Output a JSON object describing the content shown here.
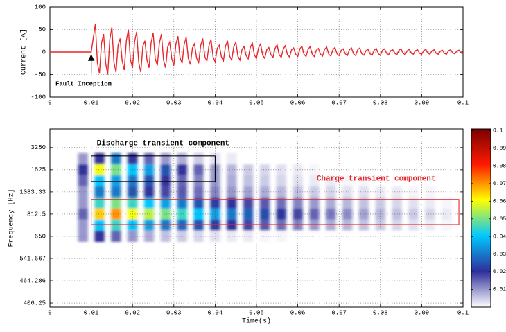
{
  "chart_data": [
    {
      "type": "line",
      "ylabel": "Current [A]",
      "xlim": [
        0,
        0.1
      ],
      "xticks": [
        0,
        0.01,
        0.02,
        0.03,
        0.04,
        0.05,
        0.06,
        0.07,
        0.08,
        0.09,
        0.1
      ],
      "ylim": [
        -100,
        100
      ],
      "yticks": [
        -100,
        -50,
        0,
        50,
        100
      ],
      "grid": true,
      "color": "#e8262a",
      "annotations": [
        {
          "text": "Fault Inception",
          "x": 0.01
        }
      ],
      "x": [
        0,
        0.01,
        0.0105,
        0.011,
        0.0115,
        0.012,
        0.0125,
        0.013,
        0.0135,
        0.014,
        0.0145,
        0.015,
        0.0155,
        0.016,
        0.0165,
        0.017,
        0.0175,
        0.018,
        0.0185,
        0.019,
        0.0195,
        0.02,
        0.0205,
        0.021,
        0.0215,
        0.022,
        0.0225,
        0.023,
        0.0235,
        0.024,
        0.0245,
        0.025,
        0.0255,
        0.026,
        0.0265,
        0.027,
        0.0275,
        0.028,
        0.0285,
        0.029,
        0.0295,
        0.03,
        0.0305,
        0.031,
        0.0315,
        0.032,
        0.0325,
        0.033,
        0.0335,
        0.034,
        0.0345,
        0.035,
        0.0355,
        0.036,
        0.0365,
        0.037,
        0.0375,
        0.038,
        0.0385,
        0.039,
        0.0395,
        0.04,
        0.0405,
        0.041,
        0.0415,
        0.042,
        0.0425,
        0.043,
        0.0435,
        0.044,
        0.0445,
        0.045,
        0.0455,
        0.046,
        0.0465,
        0.047,
        0.0475,
        0.048,
        0.0485,
        0.049,
        0.0495,
        0.05,
        0.0505,
        0.051,
        0.0515,
        0.052,
        0.0525,
        0.053,
        0.0535,
        0.054,
        0.0545,
        0.055,
        0.0555,
        0.056,
        0.0565,
        0.057,
        0.0575,
        0.058,
        0.0585,
        0.059,
        0.0595,
        0.06,
        0.0605,
        0.061,
        0.0615,
        0.062,
        0.0625,
        0.063,
        0.0635,
        0.064,
        0.0645,
        0.065,
        0.0655,
        0.066,
        0.0665,
        0.067,
        0.0675,
        0.068,
        0.0685,
        0.069,
        0.0695,
        0.07,
        0.0705,
        0.071,
        0.0715,
        0.072,
        0.0725,
        0.073,
        0.0735,
        0.074,
        0.0745,
        0.075,
        0.0755,
        0.076,
        0.0765,
        0.077,
        0.0775,
        0.078,
        0.0785,
        0.079,
        0.0795,
        0.08,
        0.0805,
        0.081,
        0.0815,
        0.082,
        0.0825,
        0.083,
        0.0835,
        0.084,
        0.0845,
        0.085,
        0.0855,
        0.086,
        0.0865,
        0.087,
        0.0875,
        0.088,
        0.0885,
        0.089,
        0.0895,
        0.09,
        0.0905,
        0.091,
        0.0915,
        0.092,
        0.0925,
        0.093,
        0.0935,
        0.094,
        0.0945,
        0.095,
        0.0955,
        0.096,
        0.0965,
        0.097,
        0.0975,
        0.098,
        0.0985,
        0.099,
        0.0995,
        0.1
      ],
      "values": [
        0,
        0,
        31,
        62,
        -24,
        -48,
        20,
        40,
        -25,
        -50,
        28,
        55,
        -23,
        -45,
        15,
        30,
        -20,
        -40,
        25,
        50,
        -18,
        -35,
        23,
        45,
        -23,
        -45,
        13,
        25,
        -18,
        -35,
        21,
        42,
        -15,
        -30,
        20,
        40,
        -18,
        -35,
        11,
        22,
        -15,
        -30,
        18,
        35,
        -13,
        -25,
        17,
        33,
        -14,
        -28,
        9,
        18,
        -13,
        -25,
        15,
        30,
        -10,
        -20,
        14,
        28,
        -11,
        -22,
        8,
        15,
        -10,
        -20,
        13,
        25,
        -9,
        -18,
        11,
        22,
        -9,
        -18,
        6,
        12,
        -8,
        -15,
        10,
        20,
        -7,
        -14,
        9,
        18,
        -7,
        -14,
        5,
        10,
        -6,
        -12,
        8,
        16,
        -6,
        -12,
        7,
        14,
        -6,
        -11,
        5,
        9,
        -5,
        -10,
        7,
        13,
        -5,
        -10,
        6,
        12,
        -5,
        -10,
        4,
        8,
        -5,
        -9,
        6,
        11,
        -5,
        -9,
        5,
        10,
        -4,
        -8,
        4,
        7,
        -4,
        -8,
        5,
        9,
        -4,
        -8,
        5,
        9,
        -4,
        -7,
        3,
        6,
        -4,
        -7,
        4,
        8,
        -4,
        -7,
        4,
        7,
        -3,
        -6,
        3,
        5,
        -3,
        -6,
        4,
        7,
        -3,
        -6,
        3,
        6,
        -3,
        -5,
        3,
        5,
        -3,
        -5,
        3,
        6,
        -3,
        -5,
        3,
        5,
        -3,
        -5,
        2,
        4,
        -3,
        -5,
        3,
        5,
        -2,
        -4,
        2,
        4,
        -2,
        -4
      ]
    },
    {
      "type": "heatmap",
      "xlabel": "Time(s)",
      "ylabel": "Frequency [Hz]",
      "xlim": [
        0,
        0.1
      ],
      "xticks": [
        0,
        0.01,
        0.02,
        0.03,
        0.04,
        0.05,
        0.06,
        0.07,
        0.08,
        0.09,
        0.1
      ],
      "yscale": "reciprocal",
      "ylim": [
        397,
        20000
      ],
      "yticks": [
        406.25,
        464.286,
        541.667,
        650,
        812.5,
        1083.33,
        1625,
        3250
      ],
      "grid": true,
      "clim": [
        0,
        0.101
      ],
      "cticks": [
        0.01,
        0.02,
        0.03,
        0.04,
        0.05,
        0.06,
        0.07,
        0.08,
        0.09,
        0.1
      ],
      "colormap": [
        "#ffffff",
        "#2e2e9a",
        "#00c8ff",
        "#ffff00",
        "#ff1a00",
        "#7a0000"
      ],
      "x": [
        0.008,
        0.012,
        0.016,
        0.02,
        0.024,
        0.028,
        0.032,
        0.036,
        0.04,
        0.044,
        0.048,
        0.052,
        0.056,
        0.06,
        0.064,
        0.068,
        0.072,
        0.076,
        0.08,
        0.084,
        0.088,
        0.092,
        0.096
      ],
      "y": [
        2166.67,
        1625,
        1300,
        1083.33,
        928.57,
        812.5,
        722.22,
        650
      ],
      "z": [
        [
          0.01,
          0.02,
          0.03,
          0.02,
          0.015,
          0.01,
          0.008,
          0.005,
          0.003,
          0.002,
          0,
          0,
          0,
          0,
          0,
          0,
          0,
          0,
          0,
          0,
          0,
          0,
          0
        ],
        [
          0.02,
          0.06,
          0.05,
          0.04,
          0.035,
          0.025,
          0.02,
          0.015,
          0.01,
          0.007,
          0.005,
          0.004,
          0.003,
          0.002,
          0.001,
          0,
          0,
          0,
          0,
          0,
          0,
          0,
          0
        ],
        [
          0.015,
          0.04,
          0.035,
          0.03,
          0.025,
          0.02,
          0.015,
          0.012,
          0.01,
          0.008,
          0.006,
          0.005,
          0.004,
          0.003,
          0.002,
          0.002,
          0.001,
          0.001,
          0,
          0,
          0,
          0,
          0
        ],
        [
          0.01,
          0.03,
          0.03,
          0.025,
          0.02,
          0.018,
          0.016,
          0.014,
          0.012,
          0.01,
          0.009,
          0.008,
          0.007,
          0.006,
          0.005,
          0.004,
          0.003,
          0.003,
          0.002,
          0.002,
          0.001,
          0.001,
          0
        ],
        [
          0.01,
          0.045,
          0.05,
          0.045,
          0.04,
          0.035,
          0.03,
          0.025,
          0.022,
          0.02,
          0.018,
          0.016,
          0.014,
          0.012,
          0.01,
          0.008,
          0.007,
          0.006,
          0.005,
          0.004,
          0.003,
          0.002,
          0.001
        ],
        [
          0.015,
          0.065,
          0.07,
          0.06,
          0.055,
          0.05,
          0.045,
          0.04,
          0.035,
          0.03,
          0.027,
          0.024,
          0.021,
          0.018,
          0.015,
          0.013,
          0.011,
          0.009,
          0.007,
          0.006,
          0.005,
          0.004,
          0.002
        ],
        [
          0.01,
          0.04,
          0.045,
          0.04,
          0.035,
          0.03,
          0.028,
          0.025,
          0.022,
          0.02,
          0.018,
          0.016,
          0.014,
          0.012,
          0.01,
          0.008,
          0.007,
          0.006,
          0.005,
          0.004,
          0.003,
          0.002,
          0.001
        ],
        [
          0.01,
          0.02,
          0.015,
          0.01,
          0.008,
          0.006,
          0.005,
          0.004,
          0.003,
          0.002,
          0.002,
          0.001,
          0.001,
          0,
          0,
          0,
          0,
          0,
          0,
          0,
          0,
          0,
          0
        ]
      ],
      "regions": [
        {
          "text": "Discharge transient component",
          "color": "#000000",
          "x": [
            0.01,
            0.04
          ],
          "y": [
            1284,
            2364
          ]
        },
        {
          "text": "Charge transient component",
          "color": "#e8262a",
          "x": [
            0.01,
            0.099
          ],
          "y": [
            727,
            973
          ]
        }
      ]
    }
  ]
}
